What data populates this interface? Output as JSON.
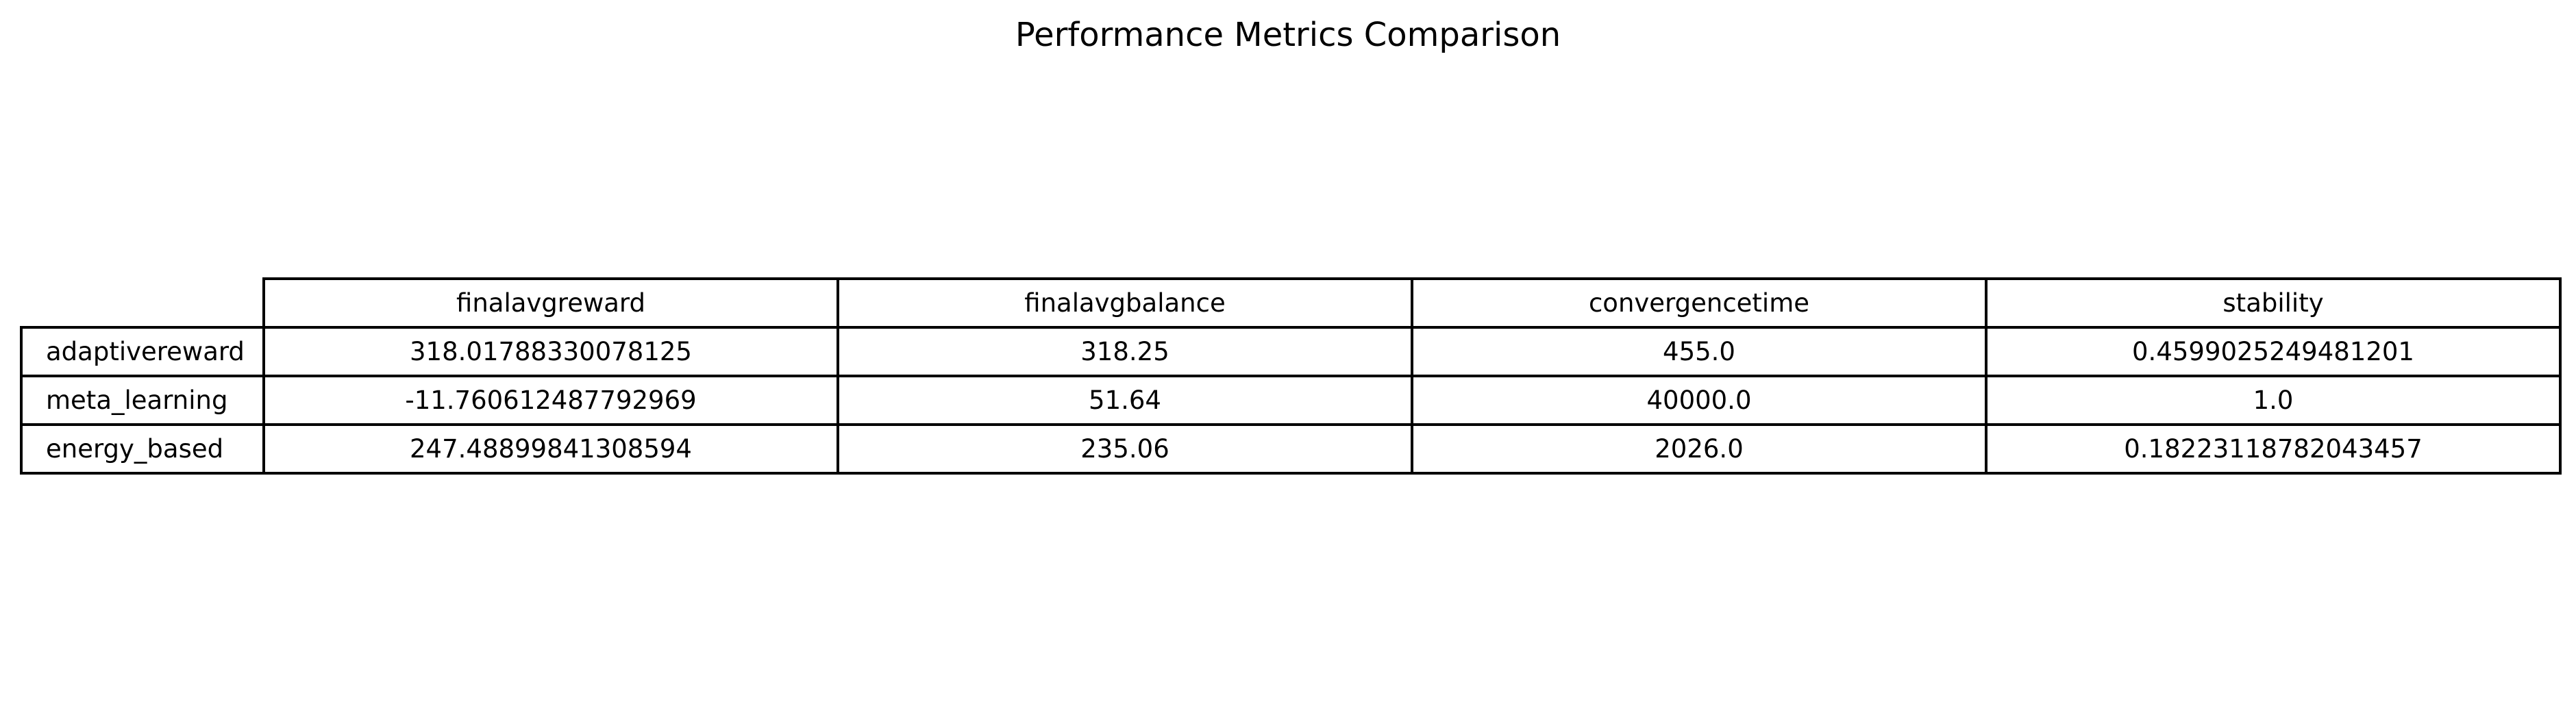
{
  "chart_data": {
    "type": "table",
    "title": "Performance Metrics Comparison",
    "columns": [
      "finalavgreward",
      "finalavgbalance",
      "convergencetime",
      "stability"
    ],
    "rows": [
      {
        "label": "adaptivereward",
        "cells": [
          "318.01788330078125",
          "318.25",
          "455.0",
          "0.4599025249481201"
        ]
      },
      {
        "label": "meta_learning",
        "cells": [
          "-11.760612487792969",
          "51.64",
          "40000.0",
          "1.0"
        ]
      },
      {
        "label": "energy_based",
        "cells": [
          "247.48899841308594",
          "235.06",
          "2026.0",
          "0.18223118782043457"
        ]
      }
    ]
  }
}
